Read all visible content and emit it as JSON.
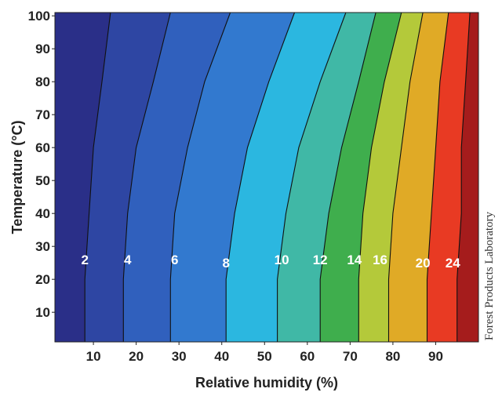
{
  "chart_data": {
    "type": "heatmap",
    "xlabel": "Relative humidity (%)",
    "ylabel": "Temperature (°C)",
    "xlim": [
      1,
      100
    ],
    "ylim": [
      1,
      101
    ],
    "xticks": [
      10,
      20,
      30,
      40,
      50,
      60,
      70,
      80,
      90
    ],
    "yticks": [
      10,
      20,
      30,
      40,
      50,
      60,
      70,
      80,
      90,
      100
    ],
    "grid": false,
    "legend": "none",
    "contour_levels": [
      2,
      4,
      6,
      8,
      10,
      12,
      14,
      16,
      20,
      24
    ],
    "level_labels": [
      {
        "text": "2",
        "x": 8,
        "y": 26
      },
      {
        "text": "4",
        "x": 18,
        "y": 26
      },
      {
        "text": "6",
        "x": 29,
        "y": 26
      },
      {
        "text": "8",
        "x": 41,
        "y": 25
      },
      {
        "text": "10",
        "x": 54,
        "y": 26
      },
      {
        "text": "12",
        "x": 63,
        "y": 26
      },
      {
        "text": "14",
        "x": 71,
        "y": 26
      },
      {
        "text": "16",
        "x": 77,
        "y": 26
      },
      {
        "text": "20",
        "x": 87,
        "y": 25
      },
      {
        "text": "24",
        "x": 94,
        "y": 25
      }
    ],
    "contours": [
      {
        "level": 2,
        "points": [
          [
            8,
            1
          ],
          [
            8,
            20
          ],
          [
            9,
            40
          ],
          [
            10,
            60
          ],
          [
            12,
            80
          ],
          [
            14,
            101
          ]
        ]
      },
      {
        "level": 4,
        "points": [
          [
            17,
            1
          ],
          [
            17,
            20
          ],
          [
            18,
            40
          ],
          [
            20,
            60
          ],
          [
            24,
            80
          ],
          [
            28,
            101
          ]
        ]
      },
      {
        "level": 6,
        "points": [
          [
            28,
            1
          ],
          [
            28,
            20
          ],
          [
            29,
            40
          ],
          [
            32,
            60
          ],
          [
            36,
            80
          ],
          [
            42,
            101
          ]
        ]
      },
      {
        "level": 8,
        "points": [
          [
            41,
            1
          ],
          [
            41,
            20
          ],
          [
            43,
            40
          ],
          [
            46,
            60
          ],
          [
            51,
            80
          ],
          [
            57,
            101
          ]
        ]
      },
      {
        "level": 10,
        "points": [
          [
            53,
            1
          ],
          [
            53,
            20
          ],
          [
            55,
            40
          ],
          [
            58,
            60
          ],
          [
            63,
            80
          ],
          [
            69,
            101
          ]
        ]
      },
      {
        "level": 12,
        "points": [
          [
            63,
            1
          ],
          [
            63,
            20
          ],
          [
            65,
            40
          ],
          [
            68,
            60
          ],
          [
            72,
            80
          ],
          [
            76,
            101
          ]
        ]
      },
      {
        "level": 14,
        "points": [
          [
            72,
            1
          ],
          [
            72,
            20
          ],
          [
            73,
            40
          ],
          [
            75,
            60
          ],
          [
            78,
            80
          ],
          [
            82,
            101
          ]
        ]
      },
      {
        "level": 16,
        "points": [
          [
            79,
            1
          ],
          [
            79,
            20
          ],
          [
            80,
            40
          ],
          [
            82,
            60
          ],
          [
            84,
            80
          ],
          [
            87,
            101
          ]
        ]
      },
      {
        "level": 20,
        "points": [
          [
            88,
            1
          ],
          [
            88,
            20
          ],
          [
            89,
            40
          ],
          [
            90,
            60
          ],
          [
            91,
            80
          ],
          [
            93,
            101
          ]
        ]
      },
      {
        "level": 24,
        "points": [
          [
            95,
            1
          ],
          [
            95,
            20
          ],
          [
            96,
            40
          ],
          [
            96,
            60
          ],
          [
            97,
            80
          ],
          [
            98,
            101
          ]
        ]
      }
    ],
    "band_colors": [
      "#2a2f88",
      "#2e46a3",
      "#3060bd",
      "#3279cf",
      "#2bb7e0",
      "#40b8a6",
      "#3fae4d",
      "#b4c93a",
      "#e0aa26",
      "#e83a23",
      "#a51c1c"
    ]
  },
  "credit": "Forest Products Laboratory"
}
